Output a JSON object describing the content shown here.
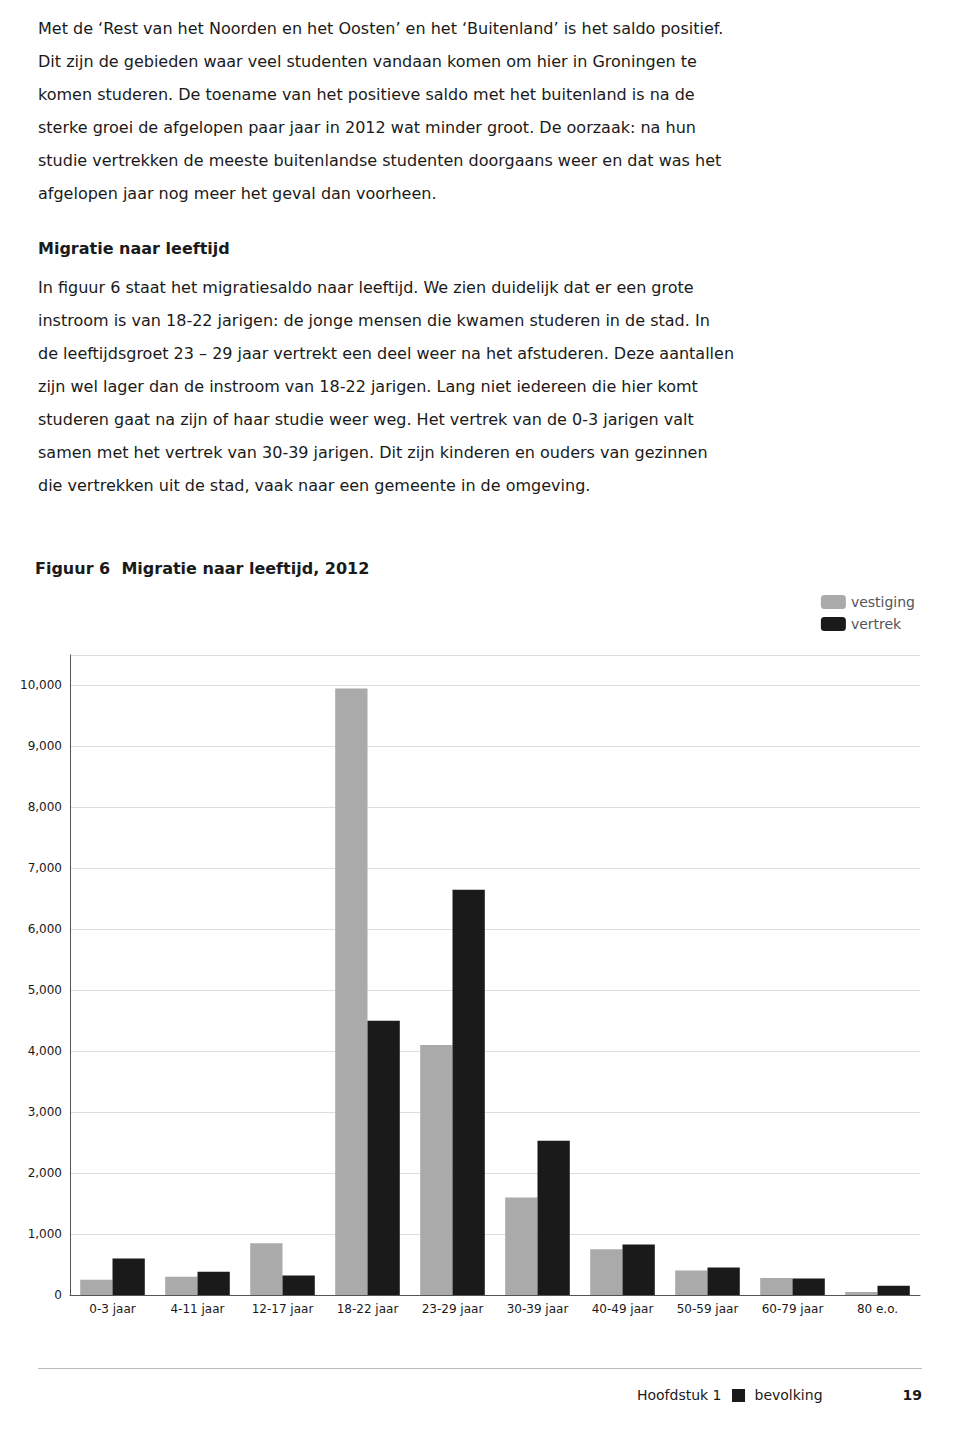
{
  "chart_data": {
    "type": "bar",
    "title": "Figuur 6  Migratie naar leeftijd, 2012",
    "categories": [
      "0-3 jaar",
      "4-11 jaar",
      "12-17 jaar",
      "18-22 jaar",
      "23-29 jaar",
      "30-39 jaar",
      "40-49 jaar",
      "50-59 jaar",
      "60-79 jaar",
      "80 e.o."
    ],
    "series": [
      {
        "name": "vestiging",
        "color": "#aaaaaa",
        "values": [
          250,
          300,
          850,
          9950,
          4100,
          1600,
          750,
          400,
          280,
          50
        ]
      },
      {
        "name": "vertrek",
        "color": "#1a1a1a",
        "values": [
          600,
          380,
          320,
          4500,
          6650,
          2530,
          830,
          450,
          270,
          150
        ]
      }
    ],
    "ylim": [
      0,
      10500
    ],
    "yticks": [
      0,
      1000,
      2000,
      3000,
      4000,
      5000,
      6000,
      7000,
      8000,
      9000,
      10000
    ],
    "grid": true,
    "legend": "upper right",
    "annotations": [
      [
        "Met de ‘Rest van het Noorden en het Oosten’ en het ‘Buitenland’ is het saldo positief.",
        "Dit zijn de gebieden waar veel studenten vandaan komen om hier in Groningen te",
        "komen studeren. De toename van het positieve saldo met het buitenland is na de",
        "sterke groei de afgelopen paar jaar in 2012 wat minder groot. De oorzaak: na hun",
        "studie vertrekken de meeste buitenlandse studenten doorgaans weer en dat was het",
        "afgelopen jaar nog meer het geval dan voorheen."
      ],
      [
        "Migratie naar leeftijd"
      ],
      [
        "In figuur 6 staat het migratiesaldo naar leeftijd. We zien duidelijk dat er een grote",
        "instroom is van 18-22 jarigen: de jonge mensen die kwamen studeren in de stad. In",
        "de leeftijdsgroet 23 – 29 jaar vertrekt een deel weer na het afstuderen. Deze aantallen",
        "zijn wel lager dan de instroom van 18-22 jarigen. Lang niet iedereen die hier komt",
        "studeren gaat na zijn of haar studie weer weg. Het vertrek van de 0-3 jarigen valt",
        "samen met het vertrek van 30-39 jarigen. Dit zijn kinderen en ouders van gezinnen",
        "die vertrekken uit de stad, vaak naar een gemeente in de omgeving."
      ],
      [
        "Hoofdstuk 1",
        "bevolking",
        "19"
      ]
    ]
  }
}
